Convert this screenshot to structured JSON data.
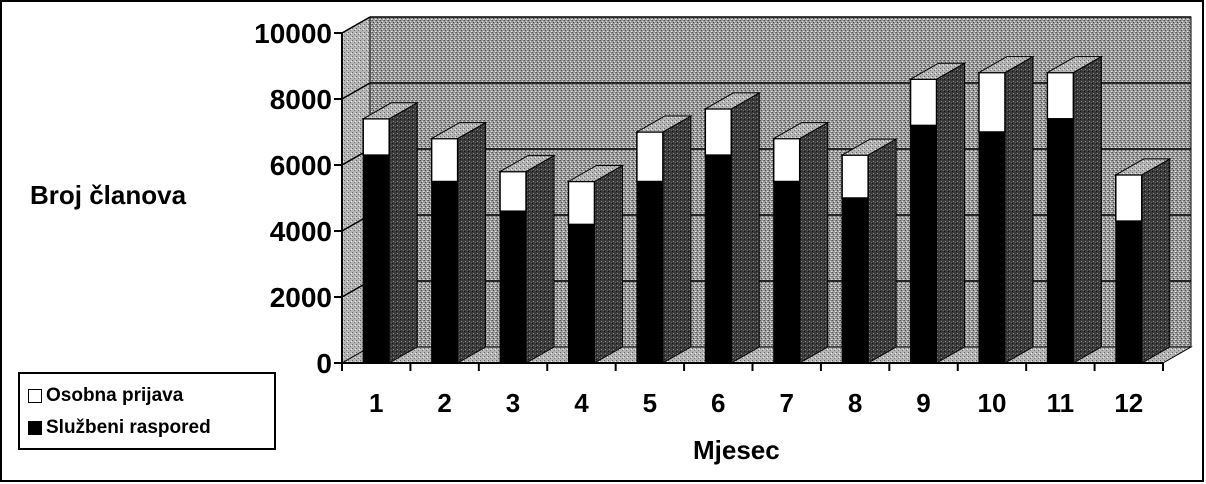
{
  "chart_data": {
    "type": "bar",
    "stacked": true,
    "three_d": true,
    "categories": [
      "1",
      "2",
      "3",
      "4",
      "5",
      "6",
      "7",
      "8",
      "9",
      "10",
      "11",
      "12"
    ],
    "series": [
      {
        "name": "Službeni raspored",
        "color": "#000000",
        "values": [
          6300,
          5500,
          4600,
          4200,
          5500,
          6300,
          5500,
          5000,
          7200,
          7000,
          7400,
          4300
        ]
      },
      {
        "name": "Osobna prijava",
        "color": "#ffffff",
        "values": [
          1100,
          1300,
          1200,
          1300,
          1500,
          1400,
          1300,
          1300,
          1400,
          1800,
          1400,
          1400
        ]
      }
    ],
    "ylabel": "Broj članova",
    "xlabel": "Mjesec",
    "ylim": [
      0,
      10000
    ],
    "yticks": [
      "0",
      "2000",
      "4000",
      "6000",
      "8000",
      "10000"
    ],
    "grid": true,
    "legend_position": "bottom-left"
  }
}
